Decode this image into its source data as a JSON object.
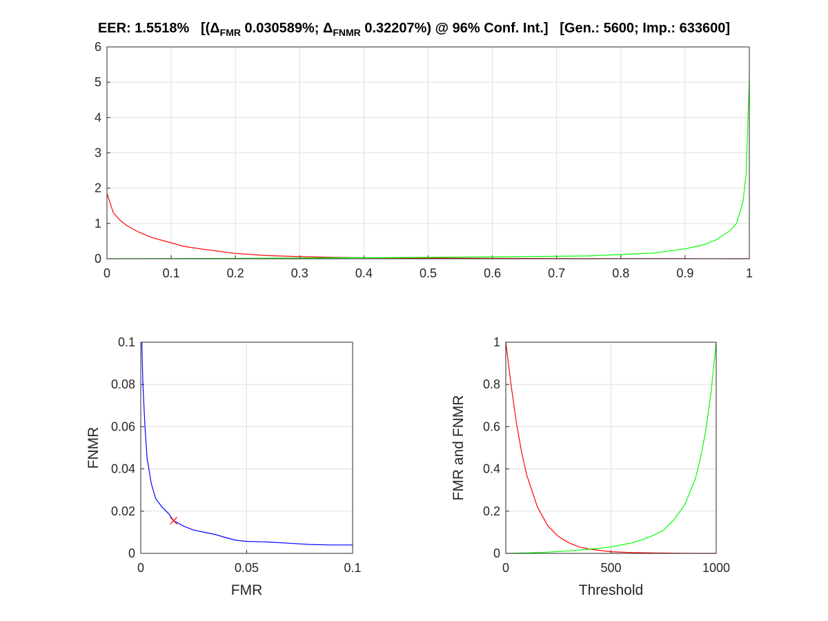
{
  "title": {
    "eer": "EER: 1.5518%",
    "open": "[(",
    "delta1": "Δ",
    "sub1": "FMR",
    "val1": " 0.030589%; ",
    "delta2": "Δ",
    "sub2": "FNMR",
    "val2": " 0.32207%) @ 96% Conf. Int.]",
    "counts": "[Gen.: 5600; Imp.: 633600]"
  },
  "colors": {
    "genuine": "#00ff00",
    "impostor": "#ff0000",
    "roc": "#0000ff",
    "eer_marker": "#ff0000"
  },
  "chart_data": [
    {
      "type": "line",
      "name": "score-distributions",
      "xlim": [
        0,
        1
      ],
      "ylim": [
        0,
        6
      ],
      "xticks": [
        "0",
        "0.1",
        "0.2",
        "0.3",
        "0.4",
        "0.5",
        "0.6",
        "0.7",
        "0.8",
        "0.9",
        "1"
      ],
      "yticks": [
        "0",
        "1",
        "2",
        "3",
        "4",
        "5",
        "6"
      ],
      "xlabel": "",
      "ylabel": "",
      "grid": true,
      "series": [
        {
          "color": "#ff0000",
          "x": [
            0,
            0.01,
            0.02,
            0.03,
            0.05,
            0.07,
            0.1,
            0.12,
            0.15,
            0.2,
            0.25,
            0.3,
            0.35,
            0.4,
            0.5,
            0.6,
            0.7,
            0.8,
            0.9,
            1.0
          ],
          "y": [
            1.85,
            1.3,
            1.1,
            0.95,
            0.75,
            0.6,
            0.45,
            0.35,
            0.27,
            0.15,
            0.09,
            0.06,
            0.04,
            0.03,
            0.02,
            0.01,
            0.005,
            0.003,
            0.002,
            0.0
          ]
        },
        {
          "color": "#00ff00",
          "x": [
            0,
            0.2,
            0.4,
            0.5,
            0.6,
            0.7,
            0.75,
            0.8,
            0.85,
            0.9,
            0.93,
            0.95,
            0.97,
            0.98,
            0.99,
            0.995,
            1.0
          ],
          "y": [
            0.0,
            0.01,
            0.03,
            0.04,
            0.05,
            0.07,
            0.08,
            0.12,
            0.16,
            0.28,
            0.4,
            0.55,
            0.8,
            1.0,
            1.6,
            2.4,
            5.1
          ]
        }
      ]
    },
    {
      "type": "line",
      "name": "roc",
      "xlim": [
        0,
        0.1
      ],
      "ylim": [
        0,
        0.1
      ],
      "xticks": [
        "0",
        "0.05",
        "0.1"
      ],
      "yticks": [
        "0",
        "0.02",
        "0.04",
        "0.06",
        "0.08",
        "0.1"
      ],
      "xlabel": "FMR",
      "ylabel": "FNMR",
      "grid": true,
      "series": [
        {
          "color": "#0000ff",
          "x": [
            0.0005,
            0.001,
            0.002,
            0.003,
            0.005,
            0.007,
            0.01,
            0.013,
            0.0155,
            0.02,
            0.025,
            0.03,
            0.035,
            0.04,
            0.045,
            0.05,
            0.06,
            0.07,
            0.08,
            0.09,
            0.1
          ],
          "y": [
            0.1,
            0.08,
            0.06,
            0.045,
            0.033,
            0.026,
            0.022,
            0.019,
            0.0155,
            0.013,
            0.011,
            0.01,
            0.009,
            0.0075,
            0.0062,
            0.0057,
            0.0054,
            0.0048,
            0.0042,
            0.004,
            0.004
          ]
        }
      ],
      "eer_point": {
        "x": 0.0155,
        "y": 0.0155,
        "color": "#ff0000"
      }
    },
    {
      "type": "line",
      "name": "fmr-fnmr-vs-threshold",
      "xlim": [
        0,
        1000
      ],
      "ylim": [
        0,
        1
      ],
      "xticks": [
        "0",
        "500",
        "1000"
      ],
      "yticks": [
        "0",
        "0.2",
        "0.4",
        "0.6",
        "0.8",
        "1"
      ],
      "xlabel": "Threshold",
      "ylabel": "FMR and FNMR",
      "grid": true,
      "series": [
        {
          "color": "#ff0000",
          "x": [
            0,
            25,
            50,
            75,
            100,
            150,
            200,
            250,
            300,
            350,
            400,
            500,
            600,
            700,
            800,
            900,
            1000
          ],
          "y": [
            1.0,
            0.8,
            0.62,
            0.48,
            0.37,
            0.22,
            0.13,
            0.08,
            0.05,
            0.03,
            0.02,
            0.008,
            0.004,
            0.002,
            0.001,
            0.0,
            0.0
          ]
        },
        {
          "color": "#00ff00",
          "x": [
            0,
            100,
            200,
            300,
            400,
            500,
            600,
            650,
            700,
            750,
            800,
            850,
            900,
            925,
            950,
            975,
            1000
          ],
          "y": [
            0.0,
            0.002,
            0.006,
            0.012,
            0.02,
            0.03,
            0.05,
            0.065,
            0.085,
            0.11,
            0.16,
            0.23,
            0.35,
            0.45,
            0.58,
            0.76,
            1.0
          ]
        }
      ]
    }
  ]
}
